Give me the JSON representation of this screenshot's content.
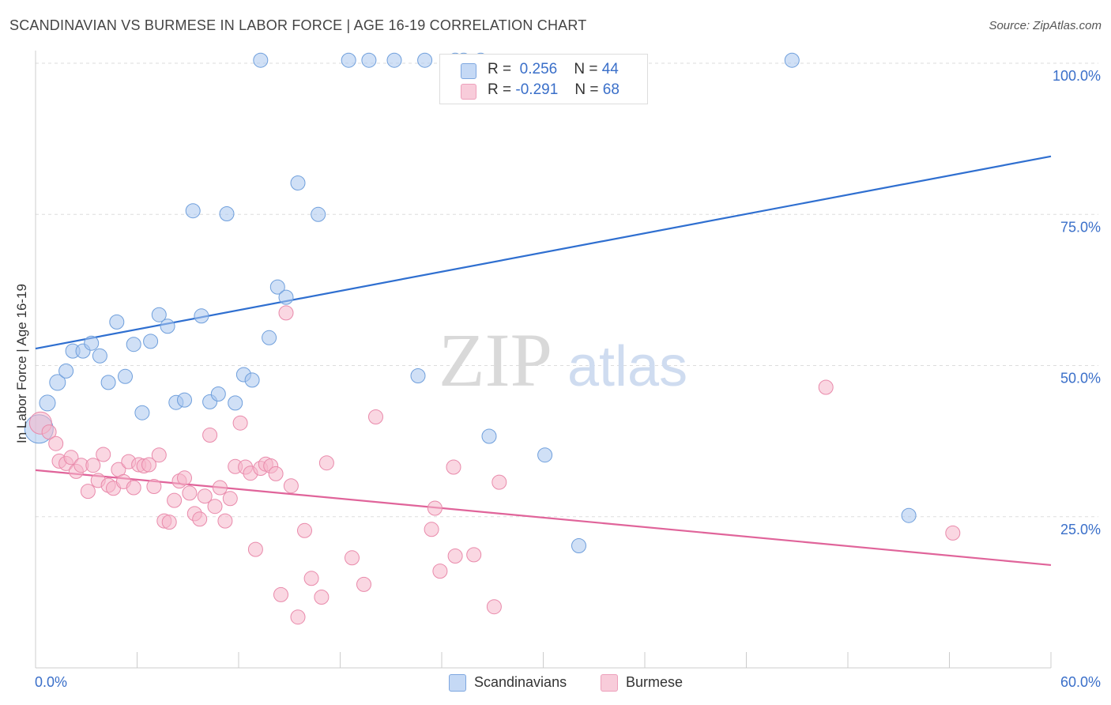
{
  "title": "SCANDINAVIAN VS BURMESE IN LABOR FORCE | AGE 16-19 CORRELATION CHART",
  "source": "Source: ZipAtlas.com",
  "watermark": {
    "zip": "ZIP",
    "atlas": "atlas"
  },
  "legend": {
    "r_label": "R =",
    "n_label": "N =",
    "rows": [
      {
        "r": "0.256",
        "n": "44",
        "color": "#a9c6ef"
      },
      {
        "r": "-0.291",
        "n": "68",
        "color": "#f6b6cb"
      }
    ]
  },
  "chart_data": {
    "type": "scatter",
    "title": "SCANDINAVIAN VS BURMESE IN LABOR FORCE | AGE 16-19 CORRELATION CHART",
    "xlabel": "",
    "ylabel": "In Labor Force | Age 16-19",
    "xlim": [
      0,
      60
    ],
    "ylim": [
      0,
      105
    ],
    "x_tick_labels": [
      "0.0%",
      "60.0%"
    ],
    "y_tick_labels": [
      "25.0%",
      "50.0%",
      "75.0%",
      "100.0%"
    ],
    "y_ticks": [
      25,
      50,
      75,
      100
    ],
    "grid": true,
    "legend_position": "top-center",
    "series": [
      {
        "name": "Scandinavians",
        "color": "#a9c6ef",
        "stroke": "#6f9fdc",
        "line_color": "#2f6fd0",
        "trend": {
          "x": [
            0,
            60
          ],
          "y": [
            52.8,
            84.6
          ]
        },
        "points": [
          [
            0.2,
            39.5,
            18
          ],
          [
            0.7,
            43.8,
            10
          ],
          [
            1.3,
            47.2,
            10
          ],
          [
            1.8,
            49.1,
            9
          ],
          [
            2.2,
            52.4,
            9
          ],
          [
            2.8,
            52.4,
            9
          ],
          [
            3.3,
            53.7,
            9
          ],
          [
            3.8,
            51.6,
            9
          ],
          [
            4.3,
            47.2,
            9
          ],
          [
            4.8,
            57.2,
            9
          ],
          [
            5.3,
            48.2,
            9
          ],
          [
            5.8,
            53.5,
            9
          ],
          [
            6.3,
            42.2,
            9
          ],
          [
            6.8,
            54.0,
            9
          ],
          [
            7.3,
            58.4,
            9
          ],
          [
            7.8,
            56.5,
            9
          ],
          [
            8.3,
            43.9,
            9
          ],
          [
            8.8,
            44.3,
            9
          ],
          [
            9.3,
            75.6,
            9
          ],
          [
            9.8,
            58.2,
            9
          ],
          [
            10.3,
            44.0,
            9
          ],
          [
            10.8,
            45.3,
            9
          ],
          [
            11.3,
            75.1,
            9
          ],
          [
            11.8,
            43.8,
            9
          ],
          [
            12.3,
            48.5,
            9
          ],
          [
            12.8,
            47.6,
            9
          ],
          [
            13.3,
            100.5,
            9
          ],
          [
            13.8,
            54.6,
            9
          ],
          [
            14.3,
            63.0,
            9
          ],
          [
            14.8,
            61.3,
            9
          ],
          [
            15.5,
            80.2,
            9
          ],
          [
            16.7,
            75.0,
            9
          ],
          [
            18.5,
            100.5,
            9
          ],
          [
            19.7,
            100.5,
            9
          ],
          [
            21.2,
            100.5,
            9
          ],
          [
            22.6,
            48.3,
            9
          ],
          [
            23.0,
            100.5,
            9
          ],
          [
            24.8,
            100.5,
            9
          ],
          [
            25.3,
            100.5,
            9
          ],
          [
            26.3,
            100.5,
            9
          ],
          [
            26.8,
            38.3,
            9
          ],
          [
            30.1,
            35.2,
            9
          ],
          [
            32.1,
            20.2,
            9
          ],
          [
            44.7,
            100.5,
            9
          ],
          [
            51.6,
            25.2,
            9
          ]
        ]
      },
      {
        "name": "Burmese",
        "color": "#f6b6cb",
        "stroke": "#e98aab",
        "line_color": "#e0649a",
        "trend": {
          "x": [
            0,
            60
          ],
          "y": [
            32.7,
            17.0
          ]
        },
        "points": [
          [
            0.3,
            40.5,
            14
          ],
          [
            0.8,
            39.0,
            9
          ],
          [
            1.2,
            37.1,
            9
          ],
          [
            1.4,
            34.2,
            9
          ],
          [
            1.8,
            33.8,
            9
          ],
          [
            2.1,
            34.8,
            9
          ],
          [
            2.4,
            32.5,
            9
          ],
          [
            2.7,
            33.5,
            9
          ],
          [
            3.1,
            29.2,
            9
          ],
          [
            3.4,
            33.5,
            9
          ],
          [
            3.7,
            31.0,
            9
          ],
          [
            4.0,
            35.3,
            9
          ],
          [
            4.3,
            30.2,
            9
          ],
          [
            4.6,
            29.7,
            9
          ],
          [
            4.9,
            32.8,
            9
          ],
          [
            5.2,
            30.8,
            9
          ],
          [
            5.5,
            34.1,
            9
          ],
          [
            5.8,
            29.8,
            9
          ],
          [
            6.1,
            33.6,
            9
          ],
          [
            6.4,
            33.4,
            9
          ],
          [
            6.7,
            33.6,
            9
          ],
          [
            7.0,
            30.0,
            9
          ],
          [
            7.3,
            35.2,
            9
          ],
          [
            7.6,
            24.3,
            9
          ],
          [
            7.9,
            24.1,
            9
          ],
          [
            8.2,
            27.7,
            9
          ],
          [
            8.5,
            30.9,
            9
          ],
          [
            8.8,
            31.4,
            9
          ],
          [
            9.1,
            28.9,
            9
          ],
          [
            9.4,
            25.5,
            9
          ],
          [
            9.7,
            24.6,
            9
          ],
          [
            10.0,
            28.4,
            9
          ],
          [
            10.3,
            38.5,
            9
          ],
          [
            10.6,
            26.7,
            9
          ],
          [
            10.9,
            29.8,
            9
          ],
          [
            11.2,
            24.3,
            9
          ],
          [
            11.5,
            28.0,
            9
          ],
          [
            11.8,
            33.3,
            9
          ],
          [
            12.1,
            40.5,
            9
          ],
          [
            12.4,
            33.2,
            9
          ],
          [
            12.7,
            32.2,
            9
          ],
          [
            13.0,
            19.6,
            9
          ],
          [
            13.3,
            33.0,
            9
          ],
          [
            13.6,
            33.7,
            9
          ],
          [
            13.9,
            33.4,
            9
          ],
          [
            14.2,
            32.1,
            9
          ],
          [
            14.5,
            12.1,
            9
          ],
          [
            14.8,
            58.7,
            9
          ],
          [
            15.1,
            30.1,
            9
          ],
          [
            15.5,
            8.4,
            9
          ],
          [
            15.9,
            22.7,
            9
          ],
          [
            16.3,
            14.8,
            9
          ],
          [
            16.9,
            11.7,
            9
          ],
          [
            17.2,
            33.9,
            9
          ],
          [
            18.7,
            18.2,
            9
          ],
          [
            19.4,
            13.8,
            9
          ],
          [
            20.1,
            41.5,
            9
          ],
          [
            23.4,
            22.9,
            9
          ],
          [
            23.6,
            26.4,
            9
          ],
          [
            23.9,
            16.0,
            9
          ],
          [
            24.7,
            33.2,
            9
          ],
          [
            24.8,
            18.5,
            9
          ],
          [
            25.9,
            18.7,
            9
          ],
          [
            27.1,
            10.1,
            9
          ],
          [
            27.4,
            30.7,
            9
          ],
          [
            46.7,
            46.4,
            9
          ],
          [
            54.2,
            22.3,
            9
          ]
        ]
      }
    ]
  },
  "bottom_legend": [
    {
      "label": "Scandinavians",
      "color": "#a9c6ef",
      "border": "#7ea7e0"
    },
    {
      "label": "Burmese",
      "color": "#f6c6d5",
      "border": "#eda0bb"
    }
  ]
}
